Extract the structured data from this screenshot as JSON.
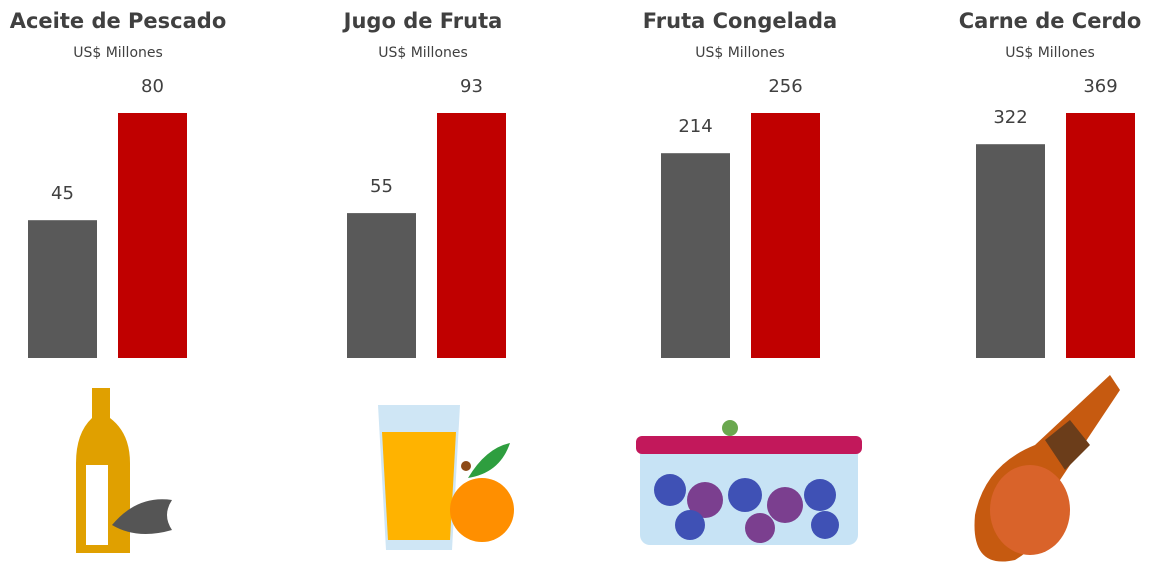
{
  "chart_data": [
    {
      "type": "bar",
      "title": "Aceite de Pescado",
      "subtitle": "US$ Millones",
      "values": [
        45,
        80
      ],
      "colors": [
        "#595959",
        "#c00000"
      ]
    },
    {
      "type": "bar",
      "title": "Jugo de Fruta",
      "subtitle": "US$ Millones",
      "values": [
        55,
        93
      ],
      "colors": [
        "#595959",
        "#c00000"
      ]
    },
    {
      "type": "bar",
      "title": "Fruta Congelada",
      "subtitle": "US$ Millones",
      "values": [
        214,
        256
      ],
      "colors": [
        "#595959",
        "#c00000"
      ]
    },
    {
      "type": "bar",
      "title": "Carne de Cerdo",
      "subtitle": "US$ Millones",
      "values": [
        322,
        369
      ],
      "colors": [
        "#595959",
        "#c00000"
      ]
    }
  ]
}
